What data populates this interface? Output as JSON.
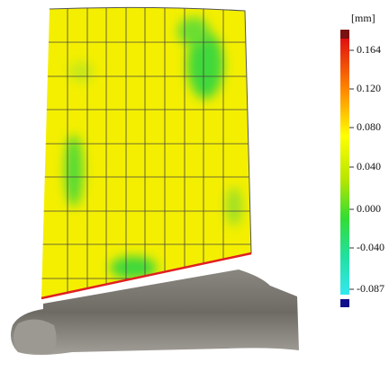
{
  "colorbar": {
    "unit": "[mm]",
    "labels": [
      "0.164",
      "0.120",
      "0.080",
      "0.040",
      "0.000",
      "-0.040",
      "-0.087"
    ]
  }
}
